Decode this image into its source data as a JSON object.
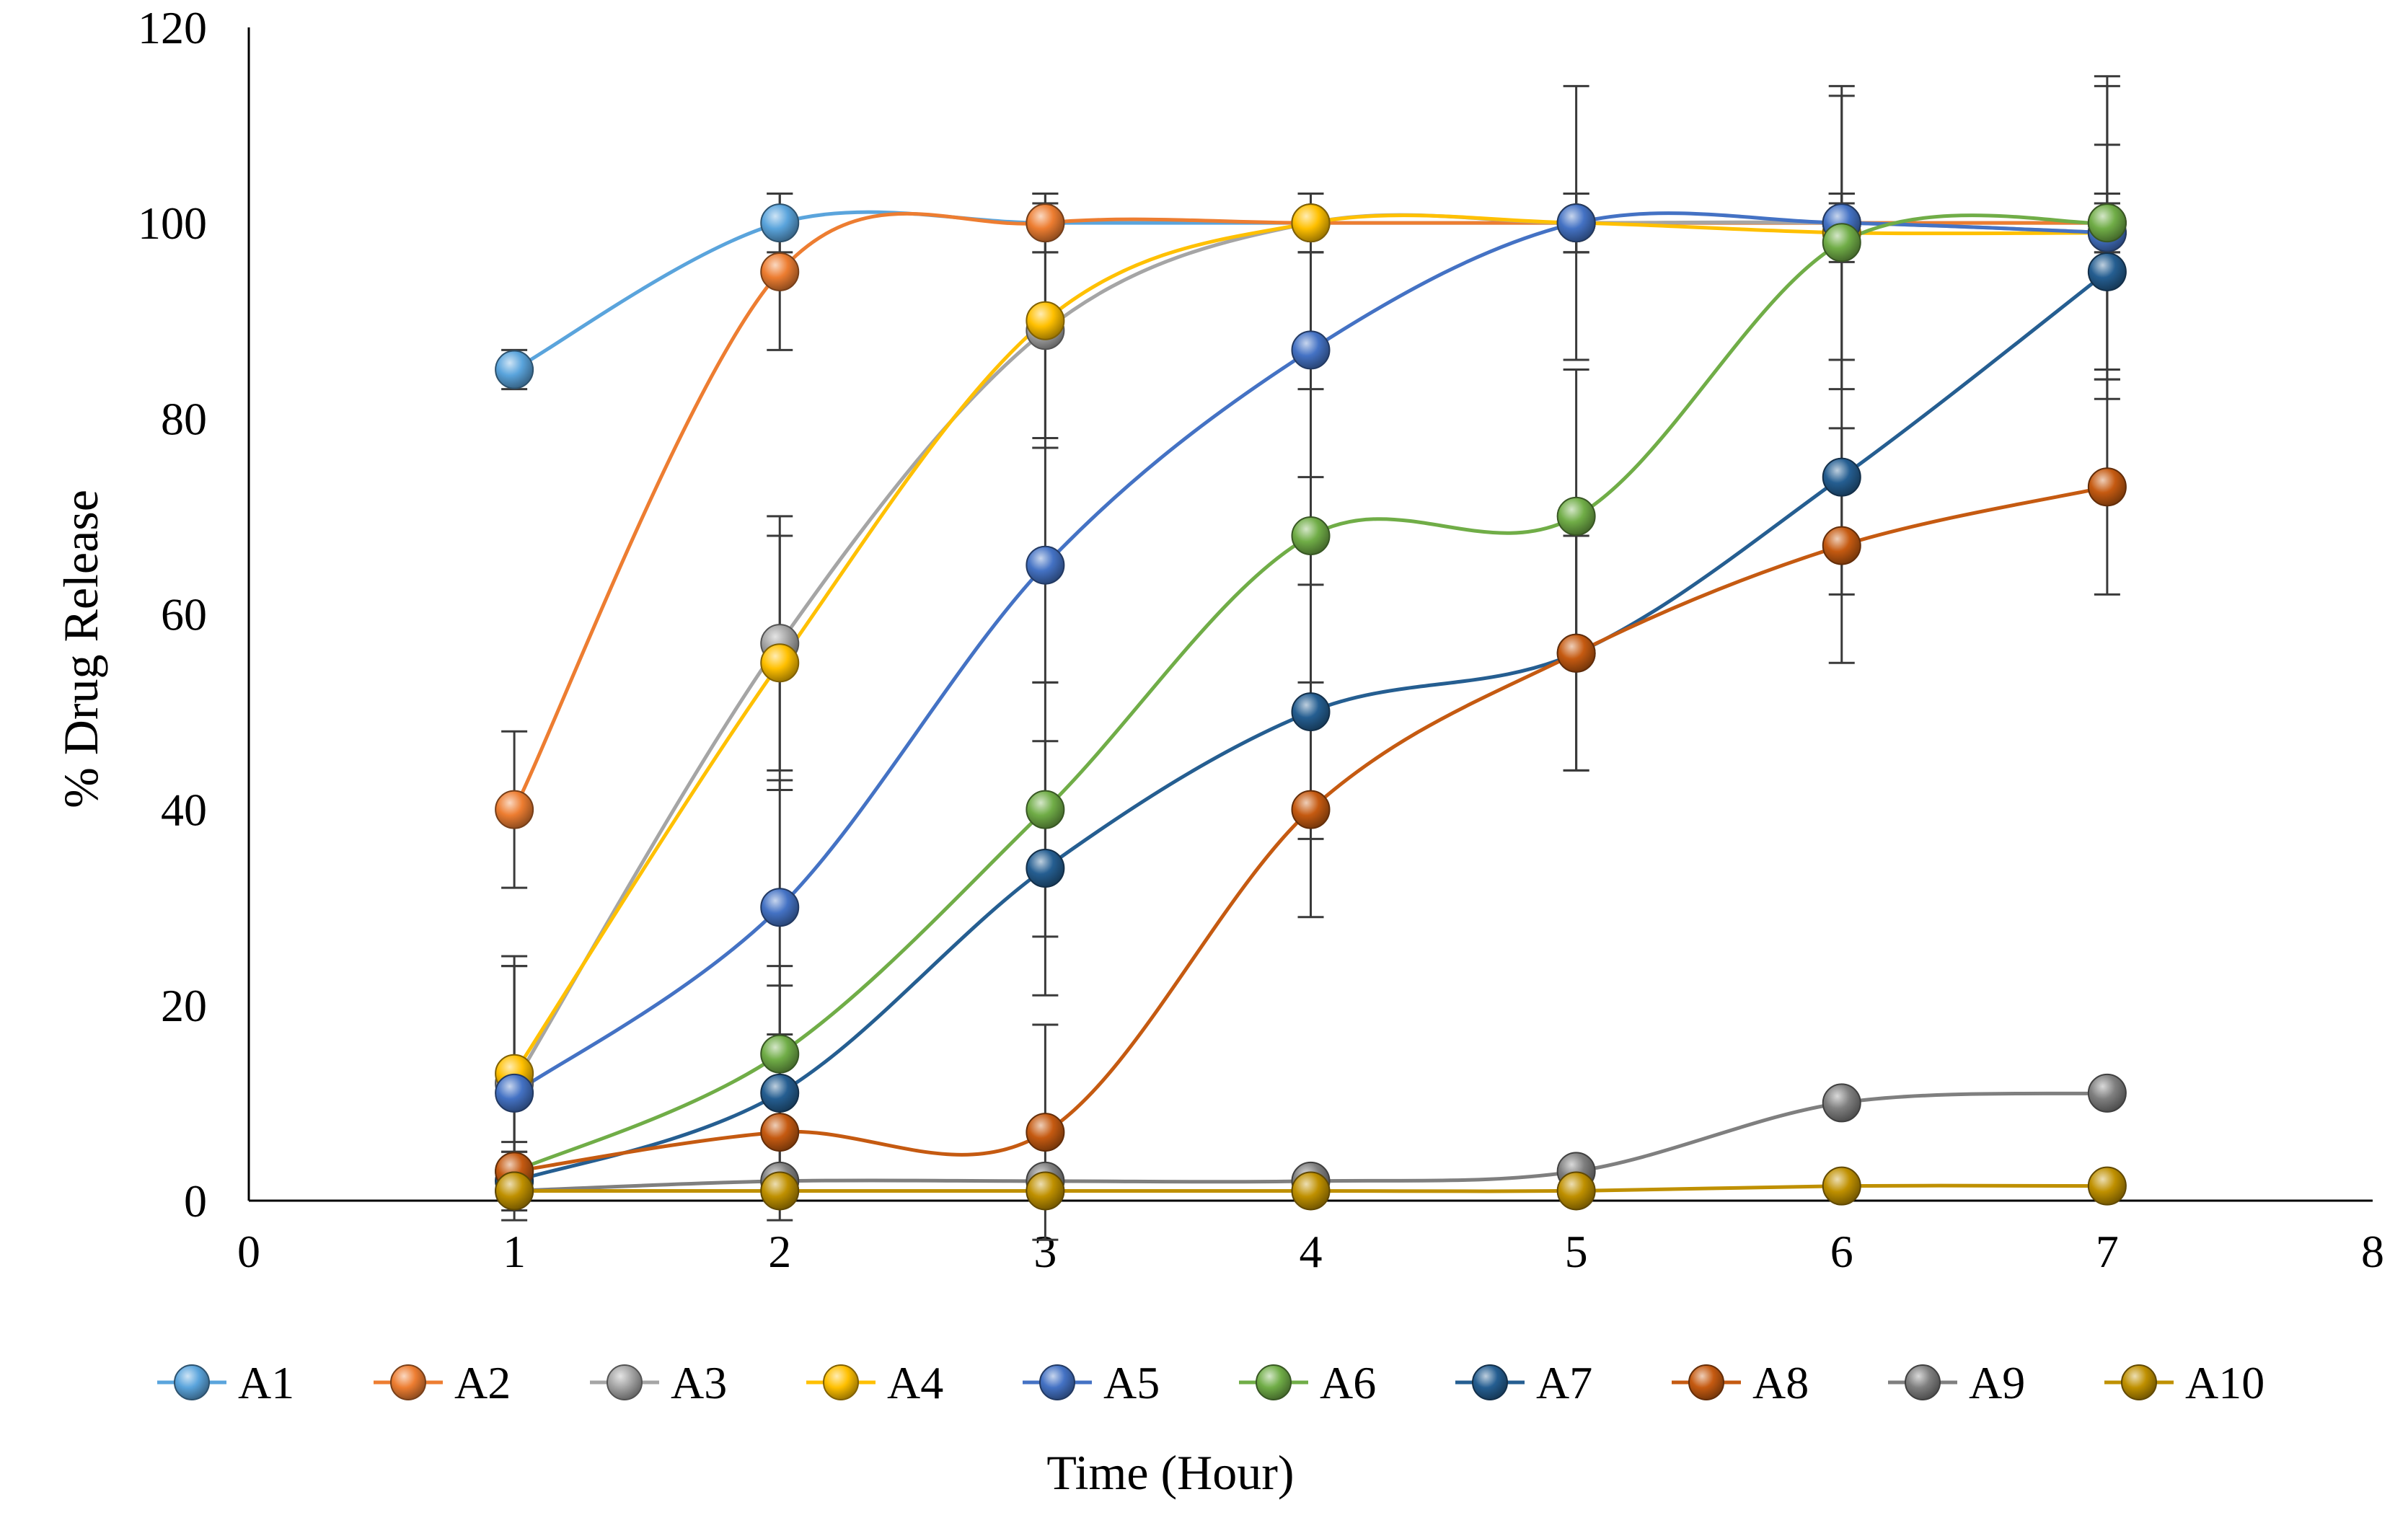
{
  "chart_data": {
    "type": "line",
    "title": "",
    "xlabel": "Time (Hour)",
    "ylabel": "% Drug Release",
    "xlim": [
      0,
      8
    ],
    "ylim": [
      0,
      120
    ],
    "x_ticks": [
      "0",
      "1",
      "2",
      "3",
      "4",
      "5",
      "6",
      "7",
      "8"
    ],
    "y_ticks": [
      "0",
      "20",
      "40",
      "60",
      "80",
      "100",
      "120"
    ],
    "grid": false,
    "legend_position": "bottom",
    "x": [
      1,
      2,
      3,
      4,
      5,
      6,
      7
    ],
    "series": [
      {
        "name": "A1",
        "color": "#5aa4dc",
        "values": [
          85,
          100,
          100,
          100,
          100,
          100,
          100
        ],
        "error": [
          2,
          3,
          3,
          3,
          3,
          3,
          3
        ]
      },
      {
        "name": "A2",
        "color": "#ed7d31",
        "values": [
          40,
          95,
          100,
          100,
          100,
          100,
          100
        ],
        "error": [
          8,
          8,
          3,
          3,
          3,
          3,
          3
        ]
      },
      {
        "name": "A3",
        "color": "#a5a5a5",
        "values": [
          12,
          57,
          89,
          100,
          100,
          100,
          99
        ],
        "error": [
          12,
          13,
          12,
          3,
          3,
          3,
          3
        ]
      },
      {
        "name": "A4",
        "color": "#ffc000",
        "values": [
          13,
          55,
          90,
          100,
          100,
          99,
          99
        ],
        "error": [
          12,
          13,
          12,
          3,
          3,
          3,
          3
        ]
      },
      {
        "name": "A5",
        "color": "#4472c4",
        "values": [
          11,
          30,
          65,
          87,
          100,
          100,
          99
        ],
        "error": [
          13,
          13,
          12,
          13,
          14,
          14,
          15
        ]
      },
      {
        "name": "A6",
        "color": "#70ad47",
        "values": [
          3,
          15,
          40,
          68,
          70,
          98,
          100
        ],
        "error": [
          3,
          7,
          13,
          15,
          15,
          15,
          15
        ]
      },
      {
        "name": "A7",
        "color": "#255e91",
        "values": [
          2,
          11,
          34,
          50,
          56,
          74,
          95
        ],
        "error": [
          3,
          13,
          13,
          13,
          12,
          12,
          13
        ]
      },
      {
        "name": "A8",
        "color": "#c55a11",
        "values": [
          3,
          7,
          7,
          40,
          56,
          67,
          73
        ],
        "error": [
          2,
          4,
          11,
          11,
          12,
          12,
          11
        ]
      },
      {
        "name": "A9",
        "color": "#7f7f7f",
        "values": [
          1,
          2,
          2,
          2,
          3,
          10,
          11
        ],
        "error": [
          1,
          1,
          1,
          1,
          1,
          1,
          1
        ]
      },
      {
        "name": "A10",
        "color": "#bf9000",
        "values": [
          1,
          1,
          1,
          1,
          1,
          1.5,
          1.5
        ],
        "error": [
          0.5,
          0.5,
          0.5,
          0.5,
          0.5,
          0.5,
          0.5
        ]
      }
    ]
  }
}
